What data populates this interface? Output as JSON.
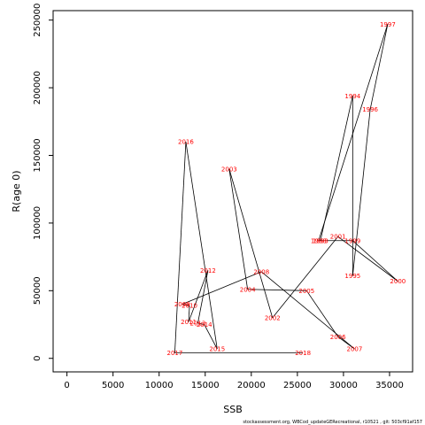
{
  "chart_data": {
    "type": "line",
    "xlabel": "SSB",
    "ylabel": "R(age 0)",
    "xlim": [
      -1500,
      37500
    ],
    "ylim": [
      -10000,
      257000
    ],
    "x_ticks": [
      0,
      5000,
      10000,
      15000,
      20000,
      25000,
      30000,
      35000
    ],
    "y_ticks": [
      0,
      50000,
      100000,
      150000,
      200000,
      250000
    ],
    "x_tick_labels": [
      "0",
      "5000",
      "10000",
      "15000",
      "20000",
      "25000",
      "30000",
      "35000"
    ],
    "y_tick_labels": [
      "0",
      "50000",
      "100000",
      "150000",
      "200000",
      "250000"
    ],
    "grid": false,
    "line_color": "#000000",
    "label_color": "#ff0000",
    "points": [
      {
        "year": "1993",
        "x": 27500,
        "y": 87000
      },
      {
        "year": "1994",
        "x": 31000,
        "y": 194000
      },
      {
        "year": "1995",
        "x": 31000,
        "y": 61000
      },
      {
        "year": "1996",
        "x": 32900,
        "y": 184000
      },
      {
        "year": "1997",
        "x": 34800,
        "y": 247000
      },
      {
        "year": "1998",
        "x": 27300,
        "y": 87000
      },
      {
        "year": "1999",
        "x": 31000,
        "y": 87000
      },
      {
        "year": "2000",
        "x": 35900,
        "y": 57000
      },
      {
        "year": "2001",
        "x": 29400,
        "y": 90000
      },
      {
        "year": "2002",
        "x": 22300,
        "y": 30000
      },
      {
        "year": "2003",
        "x": 17600,
        "y": 140000
      },
      {
        "year": "2004",
        "x": 19600,
        "y": 51000
      },
      {
        "year": "2005",
        "x": 26000,
        "y": 50000
      },
      {
        "year": "2006",
        "x": 29400,
        "y": 16000
      },
      {
        "year": "2007",
        "x": 31200,
        "y": 7000
      },
      {
        "year": "2008",
        "x": 21100,
        "y": 64000
      },
      {
        "year": "2009",
        "x": 12500,
        "y": 40000
      },
      {
        "year": "2010",
        "x": 13300,
        "y": 39000
      },
      {
        "year": "2011",
        "x": 13200,
        "y": 27000
      },
      {
        "year": "2012",
        "x": 15300,
        "y": 65000
      },
      {
        "year": "2013",
        "x": 14200,
        "y": 26000
      },
      {
        "year": "2014",
        "x": 14900,
        "y": 25000
      },
      {
        "year": "2015",
        "x": 16300,
        "y": 7000
      },
      {
        "year": "2016",
        "x": 12900,
        "y": 160000
      },
      {
        "year": "2017",
        "x": 11700,
        "y": 4000
      },
      {
        "year": "2018",
        "x": 25600,
        "y": 4000
      }
    ]
  },
  "footer": {
    "text": "stockassessment.org, WBCod_updateGERecreational, r10521 , git: 503cf91af157"
  }
}
